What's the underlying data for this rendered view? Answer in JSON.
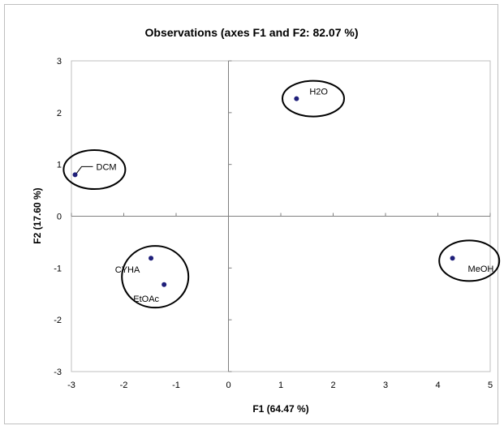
{
  "chart_data": {
    "type": "scatter",
    "title": "Observations (axes F1 and F2: 82.07 %)",
    "xlabel": "F1 (64.47 %)",
    "ylabel": "F2 (17.60 %)",
    "xlim": [
      -3,
      5
    ],
    "ylim": [
      -3,
      3
    ],
    "x_ticks": [
      -3,
      -2,
      -1,
      0,
      1,
      2,
      3,
      4,
      5
    ],
    "y_ticks": [
      -3,
      -2,
      -1,
      0,
      1,
      2,
      3
    ],
    "grid": false,
    "legend": "none",
    "point_color": "#1f1f7a",
    "points": [
      {
        "label": "H2O",
        "x": 1.3,
        "y": 2.27
      },
      {
        "label": "DCM",
        "x": -2.93,
        "y": 0.8
      },
      {
        "label": "CYHA",
        "x": -1.48,
        "y": -0.81
      },
      {
        "label": "EtOAc",
        "x": -1.23,
        "y": -1.32
      },
      {
        "label": "MeOH",
        "x": 4.28,
        "y": -0.81
      }
    ]
  }
}
